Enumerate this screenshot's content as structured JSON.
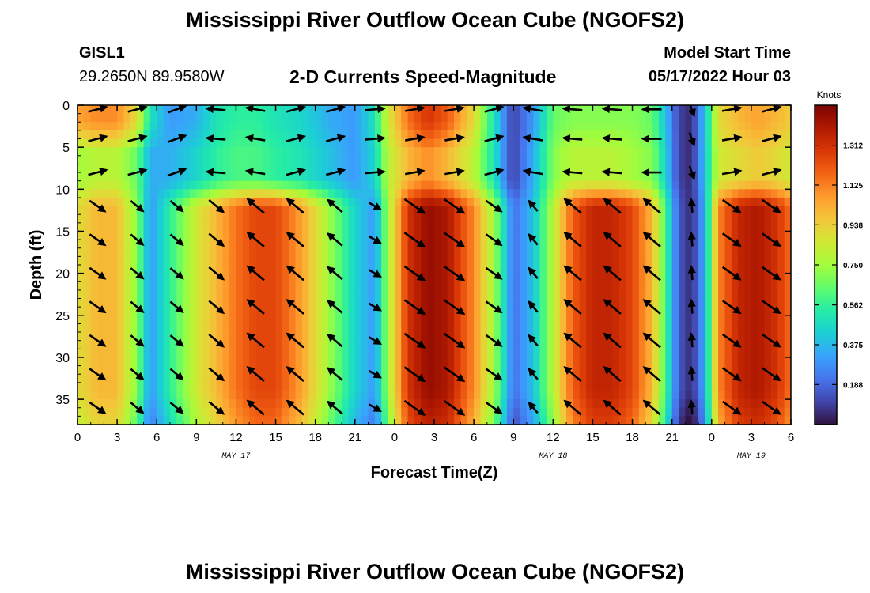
{
  "page": {
    "title": "Mississippi River Outflow Ocean Cube (NGOFS2)",
    "title_repeat": "Mississippi River Outflow Ocean Cube (NGOFS2)",
    "station": "GISL1",
    "coordinates": "29.2650N  89.9580W",
    "model_start_label": "Model Start Time",
    "model_start_value": "05/17/2022 Hour 03"
  },
  "chart_data": {
    "type": "heatmap",
    "title": "2-D Currents Speed-Magnitude",
    "xlabel": "Forecast Time(Z)",
    "ylabel": "Depth (ft)",
    "xlim": [
      0,
      54
    ],
    "ylim": [
      38,
      0
    ],
    "x_ticks": [
      0,
      3,
      6,
      9,
      12,
      15,
      18,
      21,
      24,
      27,
      30,
      33,
      36,
      39,
      42,
      45,
      48,
      51,
      54
    ],
    "x_tick_labels": [
      "0",
      "3",
      "6",
      "9",
      "12",
      "15",
      "18",
      "21",
      "0",
      "3",
      "6",
      "9",
      "12",
      "15",
      "18",
      "21",
      "0",
      "3",
      "6"
    ],
    "y_ticks": [
      0,
      5,
      10,
      15,
      20,
      25,
      30,
      35
    ],
    "y_tick_labels": [
      "0",
      "5",
      "10",
      "15",
      "20",
      "25",
      "30",
      "35"
    ],
    "date_labels": [
      {
        "x": 12,
        "text": "MAY 17"
      },
      {
        "x": 36,
        "text": "MAY 18"
      },
      {
        "x": 51,
        "text": "MAY 19"
      }
    ],
    "colorbar": {
      "label": "Knots",
      "min": 0.0,
      "max": 1.5,
      "ticks": [
        1.312,
        1.125,
        0.938,
        0.75,
        0.562,
        0.375,
        0.188
      ],
      "tick_labels": [
        "1.312",
        "1.125",
        "0.938",
        "0.750",
        "0.562",
        "0.375",
        "0.188"
      ],
      "colormap": [
        "#30123b",
        "#4145ab",
        "#4675ed",
        "#39a2fc",
        "#1bcfd4",
        "#24eca6",
        "#61fc6c",
        "#a4fc3b",
        "#d1e834",
        "#f3c63a",
        "#fe9b2d",
        "#f36315",
        "#d93806",
        "#b11901",
        "#7a0402"
      ]
    },
    "speed_profile": {
      "times": [
        0,
        1.5,
        3,
        4.5,
        5.5,
        7,
        9,
        10.5,
        12,
        13.5,
        15,
        17,
        19,
        21,
        22.5,
        23.5,
        25,
        26.5,
        28,
        30,
        31.5,
        32.5,
        33,
        34.5,
        36,
        37.5,
        39,
        40.5,
        42,
        43.5,
        44.5,
        45.5,
        46.5,
        47.5,
        48.5,
        50,
        51.5,
        53,
        54
      ],
      "deep_speed": [
        0.9,
        1.0,
        1.0,
        0.7,
        0.3,
        0.55,
        0.85,
        1.0,
        1.15,
        1.25,
        1.25,
        1.05,
        0.75,
        0.45,
        0.3,
        0.75,
        1.3,
        1.45,
        1.4,
        1.1,
        0.75,
        0.4,
        0.2,
        0.4,
        0.8,
        1.2,
        1.35,
        1.35,
        1.25,
        1.0,
        0.6,
        0.15,
        0.05,
        0.35,
        1.1,
        1.35,
        1.4,
        1.3,
        1.15
      ],
      "surface_speed": [
        1.05,
        1.1,
        1.1,
        0.9,
        0.5,
        0.3,
        0.35,
        0.5,
        0.55,
        0.55,
        0.5,
        0.45,
        0.35,
        0.3,
        0.5,
        0.85,
        1.15,
        1.3,
        1.2,
        0.9,
        0.5,
        0.2,
        0.1,
        0.3,
        0.65,
        0.7,
        0.7,
        0.7,
        0.7,
        0.65,
        0.4,
        0.1,
        0.05,
        0.4,
        0.9,
        1.0,
        1.05,
        1.0,
        0.95
      ],
      "mid_speed": [
        0.75,
        0.8,
        0.8,
        0.65,
        0.35,
        0.35,
        0.45,
        0.55,
        0.6,
        0.6,
        0.55,
        0.5,
        0.4,
        0.3,
        0.45,
        0.8,
        1.0,
        1.1,
        1.0,
        0.8,
        0.5,
        0.2,
        0.1,
        0.35,
        0.7,
        0.8,
        0.8,
        0.8,
        0.75,
        0.7,
        0.45,
        0.1,
        0.05,
        0.4,
        0.85,
        0.9,
        0.95,
        0.9,
        0.85
      ]
    },
    "vectors": {
      "times": [
        1.5,
        4.5,
        7.5,
        10.5,
        13.5,
        16.5,
        19.5,
        22.5,
        25.5,
        28.5,
        31.5,
        34.5,
        37.5,
        40.5,
        43.5,
        46.5,
        49.5,
        52.5
      ],
      "depths": [
        0,
        4,
        8,
        12,
        16,
        20,
        24,
        28,
        32,
        36
      ],
      "deep_angle_deg": [
        -35,
        -40,
        -40,
        -40,
        140,
        140,
        140,
        -30,
        -35,
        -35,
        -35,
        130,
        140,
        140,
        140,
        95,
        -35,
        -35
      ],
      "deep_length": [
        0.7,
        0.6,
        0.6,
        0.7,
        0.8,
        0.8,
        0.7,
        0.5,
        0.9,
        0.9,
        0.7,
        0.5,
        0.8,
        0.8,
        0.8,
        0.5,
        0.8,
        0.8
      ],
      "surface_angle_deg": [
        15,
        15,
        20,
        175,
        170,
        15,
        15,
        5,
        10,
        10,
        15,
        170,
        175,
        175,
        180,
        -70,
        10,
        15
      ],
      "surface_length": [
        0.7,
        0.7,
        0.7,
        0.7,
        0.7,
        0.7,
        0.7,
        0.7,
        0.7,
        0.7,
        0.7,
        0.7,
        0.7,
        0.7,
        0.7,
        0.5,
        0.7,
        0.7
      ]
    }
  }
}
